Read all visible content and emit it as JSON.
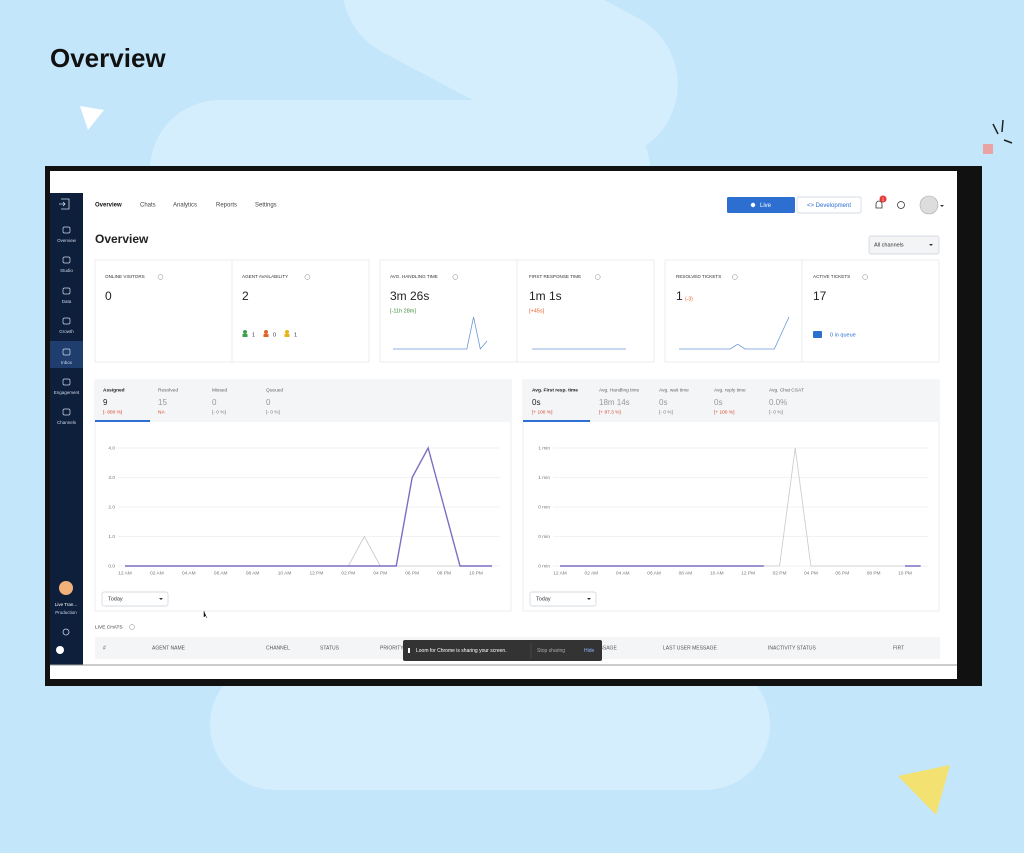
{
  "heading": "Overview",
  "sidebar": [
    "Overview",
    "Studio",
    "Data",
    "Growth",
    "Inbox",
    "Engagement",
    "Channels"
  ],
  "user": {
    "name": "Live Tran...",
    "env": "Production"
  },
  "nav": [
    "Overview",
    "Chats",
    "Analytics",
    "Reports",
    "Settings"
  ],
  "buttons": {
    "live": "Live",
    "development": "<> Development"
  },
  "notification_count": "1",
  "page_title": "Overview",
  "channel_select": "All channels",
  "cards": [
    {
      "label": "ONLINE VISITORS",
      "value": "0"
    },
    {
      "label": "AGENT AVAILABILITY",
      "value": "2",
      "statuses": [
        "1",
        "0",
        "1"
      ]
    },
    {
      "label": "AVG. HANDLING TIME",
      "value": "3m 26s",
      "delta": "[-11h 28m]",
      "spark": [
        0,
        0,
        0,
        0,
        0,
        0,
        0,
        0,
        0,
        0,
        0,
        0,
        1,
        0,
        0.25
      ]
    },
    {
      "label": "FIRST RESPONSE TIME",
      "value": "1m 1s",
      "delta": "[+45s]",
      "spark": [
        0,
        0,
        0,
        0,
        0,
        0,
        0,
        0,
        0,
        0,
        0,
        0,
        0,
        0,
        0
      ]
    },
    {
      "label": "RESOLVED TICKETS",
      "value": "1",
      "delta": "(-3)",
      "spark": [
        0,
        0,
        0,
        0,
        0,
        0,
        0,
        0,
        0.15,
        0,
        0,
        0,
        0,
        0,
        0.5,
        1
      ]
    },
    {
      "label": "ACTIVE TICKETS",
      "value": "17",
      "queue": "0 in queue"
    }
  ],
  "left_panel": {
    "tabs": [
      {
        "label": "Assigned",
        "value": "9",
        "delta": "[- 800 %]"
      },
      {
        "label": "Resolved",
        "value": "15",
        "delta": "NA"
      },
      {
        "label": "Missed",
        "value": "0",
        "delta": "[- 0 %]"
      },
      {
        "label": "Queued",
        "value": "0",
        "delta": "[- 0 %]"
      }
    ],
    "select": "Today",
    "chart": {
      "type": "line",
      "categories": [
        "12 AM",
        null,
        "02 AM",
        null,
        "04 AM",
        null,
        "06 AM",
        null,
        "08 AM",
        null,
        "10 AM",
        null,
        "12 PM",
        null,
        "02 PM",
        null,
        "04 PM",
        null,
        "06 PM",
        null,
        "08 PM",
        null,
        "10 PM",
        null
      ],
      "ylim": [
        0,
        4
      ],
      "yticks": [
        {
          "value": 0,
          "label": "0.0"
        },
        {
          "value": 1,
          "label": "1.0"
        },
        {
          "value": 2,
          "label": "2.0"
        },
        {
          "value": 3,
          "label": "3.0"
        },
        {
          "value": 4,
          "label": "4.0"
        }
      ],
      "grid": true,
      "series": [
        {
          "color": "#c8c8c8",
          "values": [
            0,
            0,
            0,
            0,
            0,
            0,
            0,
            0,
            0,
            0,
            0,
            0,
            0,
            0,
            0,
            1,
            0,
            0,
            0,
            0,
            0,
            0,
            0,
            0
          ]
        },
        {
          "color": "#7b6fc4",
          "values": [
            0,
            0,
            0,
            0,
            0,
            0,
            0,
            0,
            0,
            0,
            0,
            0,
            0,
            0,
            0,
            0,
            0,
            0,
            3,
            4,
            2,
            0,
            0,
            0
          ]
        }
      ]
    }
  },
  "right_panel": {
    "tabs": [
      {
        "label": "Avg. First resp. time",
        "value": "0s",
        "delta": "[+ 100 %]"
      },
      {
        "label": "Avg. Handling time",
        "value": "18m 14s",
        "delta": "[+ 87.3 %]"
      },
      {
        "label": "Avg. wait time",
        "value": "0s",
        "delta": "[- 0 %]"
      },
      {
        "label": "Avg. reply time",
        "value": "0s",
        "delta": "[+ 100 %]"
      },
      {
        "label": "Avg. Chat CSAT",
        "value": "0.0%",
        "delta": "[- 0 %]"
      }
    ],
    "select": "Today",
    "chart": {
      "type": "line",
      "categories": [
        "12 AM",
        null,
        "02 AM",
        null,
        "04 AM",
        null,
        "06 AM",
        null,
        "08 AM",
        null,
        "10 AM",
        null,
        "12 PM",
        null,
        "02 PM",
        null,
        "04 PM",
        null,
        "06 PM",
        null,
        "08 PM",
        null,
        "10 PM",
        null
      ],
      "ylim": [
        0,
        1
      ],
      "yticks": [
        {
          "value": 0,
          "label": "0 min"
        },
        {
          "value": 0.25,
          "label": "0 min"
        },
        {
          "value": 0.5,
          "label": "0 min"
        },
        {
          "value": 0.75,
          "label": "1 min"
        },
        {
          "value": 1,
          "label": "1 min"
        }
      ],
      "grid": true,
      "series": [
        {
          "color": "#c8c8c8",
          "values": [
            0,
            0,
            0,
            0,
            0,
            0,
            0,
            0,
            0,
            0,
            0,
            0,
            0,
            0,
            0,
            1,
            0,
            0,
            0,
            0,
            0,
            0,
            0,
            0
          ]
        },
        {
          "color": "#7b6fc4",
          "values": [
            0,
            0,
            0,
            0,
            0,
            0,
            0,
            0,
            0,
            0,
            0,
            0,
            0,
            0,
            null,
            null,
            null,
            null,
            null,
            null,
            null,
            null,
            0,
            0
          ]
        }
      ]
    }
  },
  "live_chats": {
    "title": "LIVE CHATS",
    "columns": [
      "#",
      "AGENT NAME",
      "CHANNEL",
      "STATUS",
      "PRIORITY",
      "LAST AGENT MESSAGE",
      "LAST USER MESSAGE",
      "INACTIVITY STATUS",
      "FIRT"
    ]
  },
  "toast": {
    "message": "Loom for Chrome is sharing your screen.",
    "stop": "Stop sharing",
    "hide": "Hide"
  }
}
